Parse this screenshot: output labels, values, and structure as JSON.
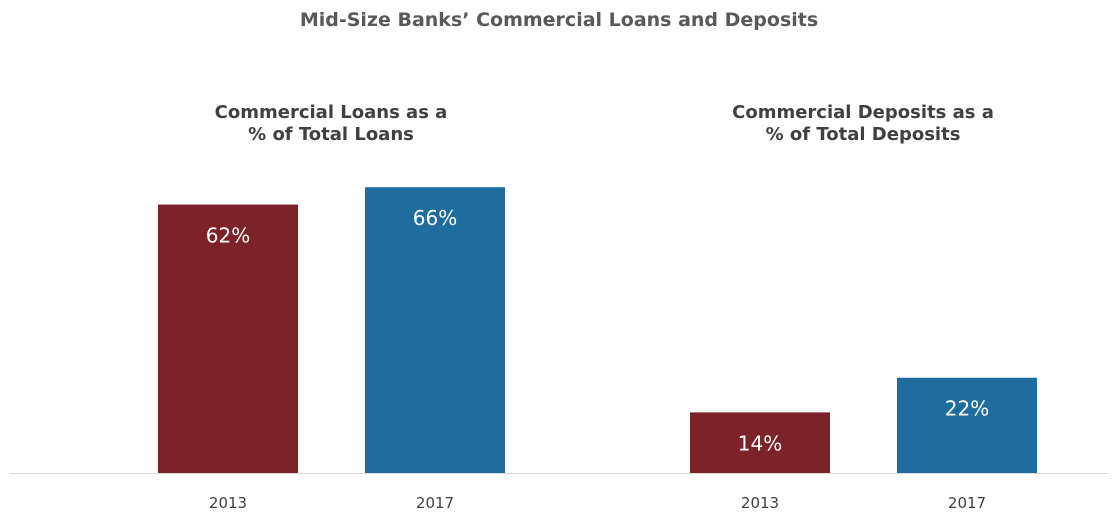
{
  "title": "Mid-Size Banks’ Commercial Loans and Deposits",
  "chart_data": [
    {
      "type": "bar",
      "title_lines": [
        "Commercial Loans as a",
        "% of Total Loans"
      ],
      "categories": [
        "2013",
        "2017"
      ],
      "values": [
        62,
        66
      ],
      "value_labels": [
        "62%",
        "66%"
      ],
      "ylim": [
        0,
        100
      ],
      "colors": [
        "#7b2328",
        "#1f6d9e"
      ],
      "grid": false,
      "legend": "none"
    },
    {
      "type": "bar",
      "title_lines": [
        "Commercial Deposits as a",
        "% of Total Deposits"
      ],
      "categories": [
        "2013",
        "2017"
      ],
      "values": [
        14,
        22
      ],
      "value_labels": [
        "14%",
        "22%"
      ],
      "ylim": [
        0,
        100
      ],
      "colors": [
        "#7b2328",
        "#1f6d9e"
      ],
      "grid": false,
      "legend": "none"
    }
  ]
}
